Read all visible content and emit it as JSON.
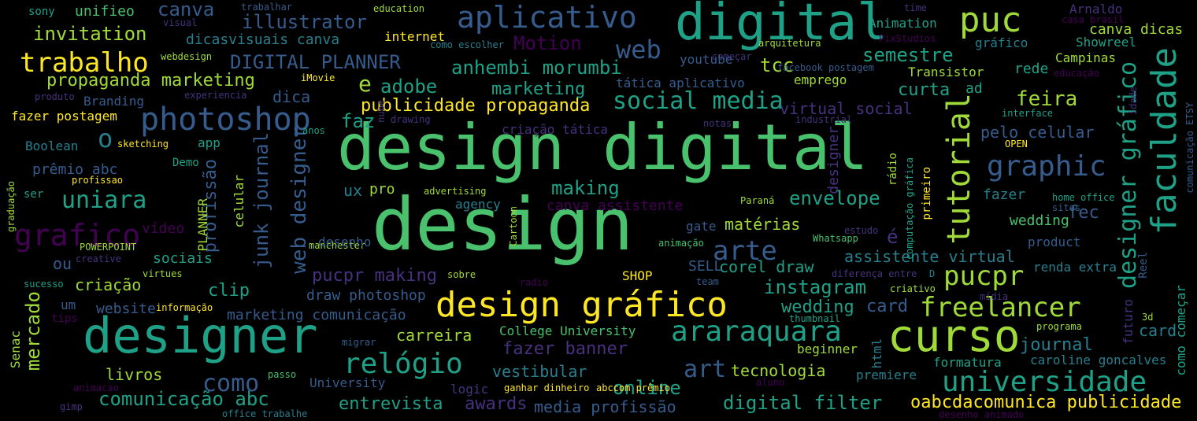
{
  "colors": {
    "background": "#000000",
    "c0": "#440154",
    "c1": "#46327e",
    "c2": "#365c8d",
    "c3": "#277f8e",
    "c4": "#1fa187",
    "c5": "#4ac16d",
    "c6": "#a0da39",
    "c7": "#fde725"
  },
  "words": [
    "design digital",
    "design",
    "designer",
    "design gráfico",
    "digital",
    "curso",
    "aplicativo",
    "puc",
    "faculdade",
    "photoshop",
    "graphic",
    "grafico",
    "tutorial",
    "designer gráfico",
    "universidade",
    "araraquara",
    "freelancer",
    "pucpr",
    "relógio",
    "social media",
    "arte",
    "trabalho",
    "uniara",
    "web designer",
    "junk journal",
    "publicidade propaganda",
    "comunicação abc",
    "anhembi morumbi",
    "invitation",
    "DIGITAL PLANNER",
    "propaganda marketing",
    "feira",
    "tcc",
    "Motion",
    "web",
    "instagram",
    "envelope",
    "semestre",
    "digital filter",
    "oabcdacomunica publicidade",
    "mercado",
    "illustrator",
    "canva",
    "dicasvisuais canva",
    "adobe",
    "marketing",
    "curta",
    "fazer banner",
    "art",
    "como",
    "entrevista",
    "awards",
    "media profissão",
    "wedding",
    "card",
    "assistente virtual",
    "journal",
    "making",
    "canva assistente",
    "corel draw",
    "matérias",
    "tecnologia",
    "carreira",
    "livros",
    "criação",
    "sociais",
    "ou",
    "clip",
    "pucpr making",
    "marketing comunicação",
    "draw photoshop",
    "website",
    "vestibular",
    "online",
    "College University",
    "profissão",
    "celular",
    "dica",
    "virtual social",
    "pelo celular",
    "designer",
    "fazer",
    "wedding",
    "fec",
    "rede",
    "canva dicas",
    "Campinas",
    "Showreel",
    "gráfico",
    "Animation",
    "Arnaldo",
    "casa brasil",
    "PixStudios",
    "time",
    "arquitetura",
    "facebook postagem",
    "começar",
    "Transistor",
    "educação",
    "interface",
    "OPEN",
    "idade",
    "comunicação ETSY",
    "home office",
    "sites",
    "product",
    "renda extra",
    "Reel",
    "como começar",
    "futuro",
    "card",
    "3d",
    "programa",
    "formatura",
    "caroline goncalves",
    "premiere",
    "html",
    "tática aplicativo",
    "criação tática",
    "youtube",
    "internet",
    "como escolher",
    "education",
    "trabalhar",
    "visual",
    "sony",
    "unifieo",
    "webdesign",
    "iMovie",
    "experiencia",
    "produto",
    "Branding",
    "fazer postagem",
    "anos",
    "nube",
    "drawing",
    "notas",
    "industrial",
    "sketching",
    "app",
    "Boolean",
    "prêmio abc",
    "Demo",
    "profissao",
    "graduação",
    "ser",
    "vídeo",
    "POWERPOINT",
    "creative",
    "virtues",
    "sucesso",
    "um",
    "tips",
    "informação",
    "Senac",
    "animacao",
    "gimp",
    "office trabalhe",
    "manchester",
    "agency",
    "advertising",
    "Cartoon",
    "Paraná",
    "gate",
    "animação",
    "estudo",
    "Whatsapp",
    "computação gráfica",
    "rádio",
    "primeiro",
    "SELL",
    "team",
    "SHOP",
    "diferença entre",
    "D",
    "criativo",
    "mídia",
    "thumbnail",
    "beginner",
    "aluno",
    "desenho animado",
    "desenho",
    "migrar",
    "passo",
    "abccom prêmio",
    "ganhar dinheiro",
    "logic",
    "University",
    "radio",
    "sobre",
    "PLANNER",
    "emprego",
    "e",
    "o",
    "faz",
    "é",
    "ux",
    "pro",
    "ad"
  ]
}
